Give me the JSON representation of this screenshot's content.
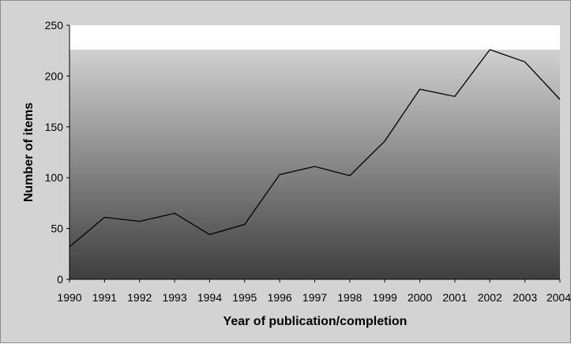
{
  "chart_data": {
    "type": "area",
    "title": "",
    "xlabel": "Year of publication/completion",
    "ylabel": "Number of items",
    "x": [
      "1990",
      "1991",
      "1992",
      "1993",
      "1994",
      "1995",
      "1996",
      "1997",
      "1998",
      "1999",
      "2000",
      "2001",
      "2002",
      "2003",
      "2004"
    ],
    "series": [
      {
        "values": [
          32,
          61,
          57,
          65,
          44,
          54,
          103,
          111,
          102,
          136,
          187,
          180,
          226,
          214,
          177
        ]
      }
    ],
    "ylim": [
      0,
      250
    ],
    "yticks": [
      0,
      50,
      100,
      150,
      200,
      250
    ],
    "grid": false,
    "legend": "none",
    "colors": {
      "plot_top": "#e0e0e0",
      "plot_bottom": "#3e3e3e",
      "plot_band": "#ffffff",
      "line": "#000000",
      "frame_bg": "#d3d3d3"
    }
  }
}
